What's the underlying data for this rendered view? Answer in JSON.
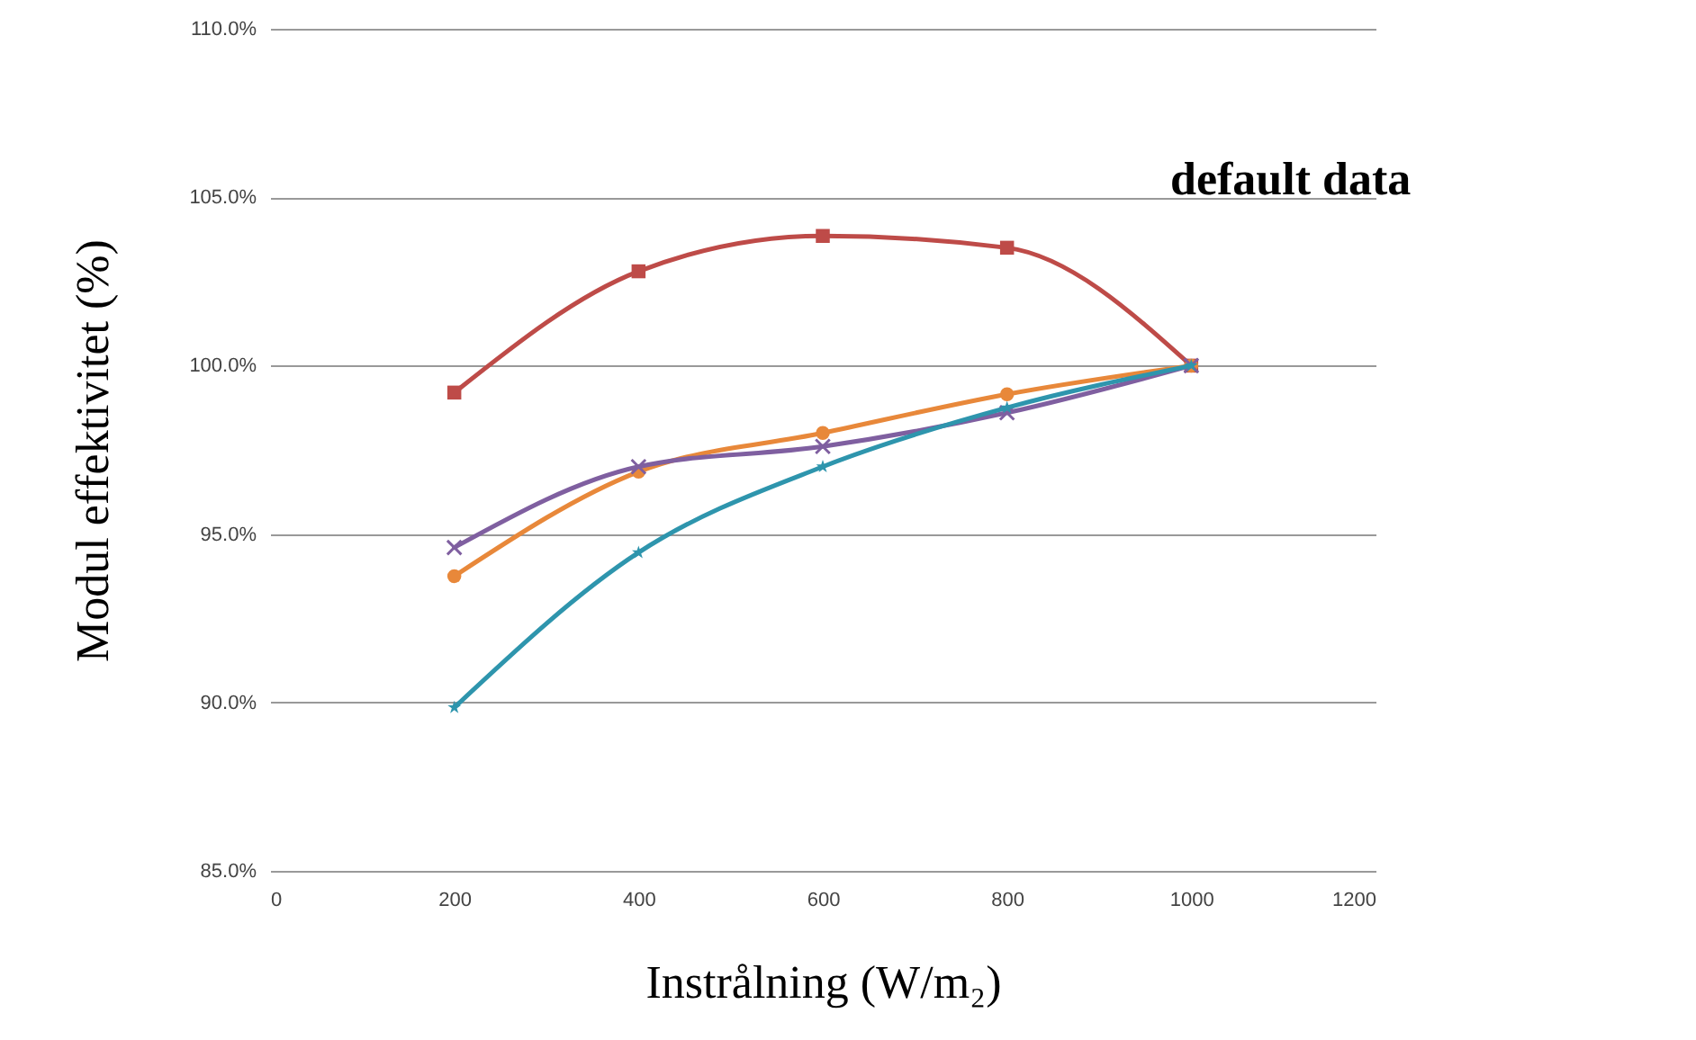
{
  "chart_data": {
    "type": "line",
    "xlabel": "Instrålning (W/m₂)",
    "ylabel": "Modul effektivitet (%)",
    "annotations": [
      "default data"
    ],
    "x": [
      200,
      400,
      600,
      800,
      1000
    ],
    "series": [
      {
        "color": "#be4b48",
        "marker": "square",
        "values": [
          99.2,
          102.8,
          103.85,
          103.5,
          100.0
        ]
      },
      {
        "color": "#e8883a",
        "marker": "circle",
        "values": [
          93.75,
          96.85,
          98.0,
          99.15,
          100.0
        ]
      },
      {
        "color": "#7f5fa0",
        "marker": "cross",
        "values": [
          94.6,
          97.0,
          97.6,
          98.6,
          100.0
        ]
      },
      {
        "color": "#2e95ad",
        "marker": "star",
        "values": [
          89.85,
          94.45,
          97.0,
          98.75,
          100.0
        ]
      }
    ],
    "xlim": [
      0,
      1200
    ],
    "xticks": [
      0,
      200,
      400,
      600,
      800,
      1000,
      1200
    ],
    "ylim": [
      85,
      110
    ],
    "yticks": [
      {
        "value": 85,
        "label": "85.0%"
      },
      {
        "value": 90,
        "label": "90.0%"
      },
      {
        "value": 95,
        "label": "95.0%"
      },
      {
        "value": 100,
        "label": "100.0%"
      },
      {
        "value": 105,
        "label": "105.0%"
      },
      {
        "value": 110,
        "label": "110.0%"
      }
    ],
    "grid": "y",
    "line_style": "solid"
  }
}
